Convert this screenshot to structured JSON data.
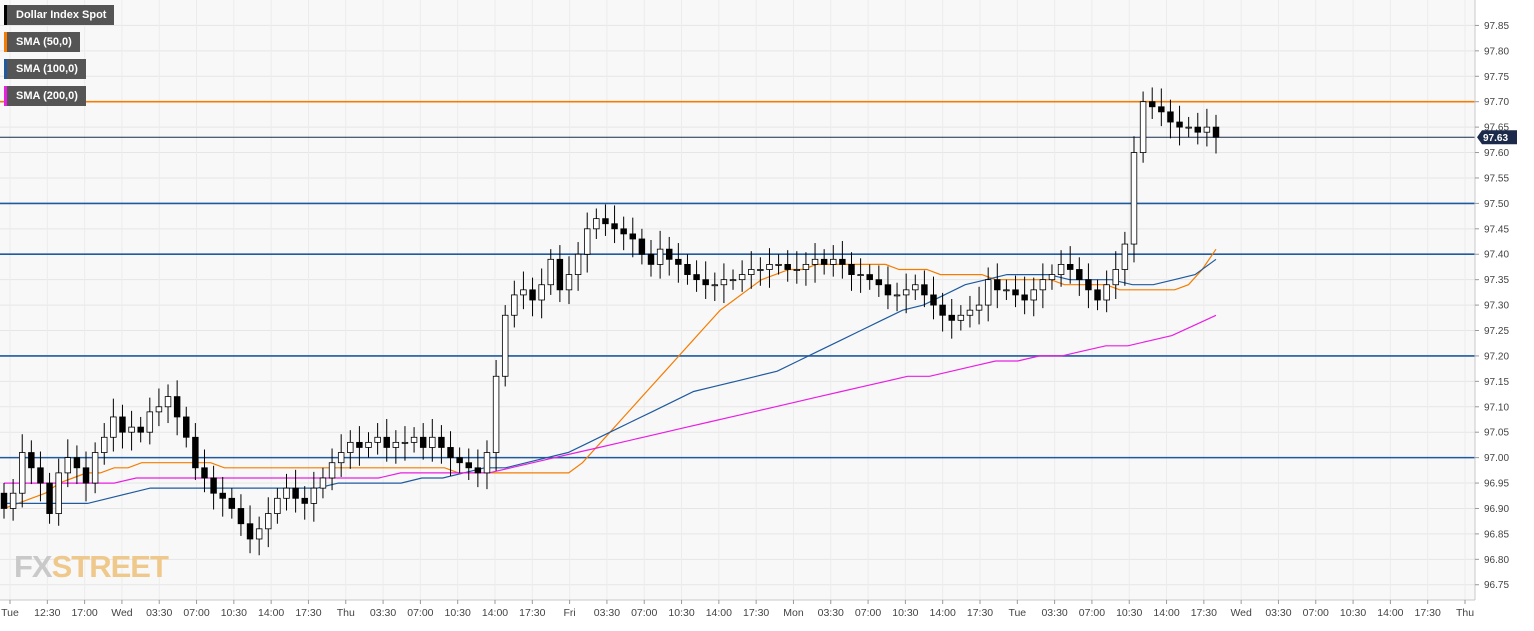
{
  "chart_data": {
    "type": "candlestick",
    "instrument": "Dollar Index Spot",
    "ylim": [
      96.72,
      97.9
    ],
    "y_ticks": [
      "97.85",
      "97.80",
      "97.75",
      "97.70",
      "97.65",
      "97.60",
      "97.55",
      "97.50",
      "97.45",
      "97.40",
      "97.35",
      "97.30",
      "97.25",
      "97.20",
      "97.15",
      "97.10",
      "97.05",
      "97.00",
      "96.95",
      "96.90",
      "96.85",
      "96.80",
      "96.75"
    ],
    "x_ticks": [
      "Tue",
      "12:30",
      "17:00",
      "Wed",
      "03:30",
      "07:00",
      "10:30",
      "14:00",
      "17:30",
      "Thu",
      "03:30",
      "07:00",
      "10:30",
      "14:00",
      "17:30",
      "Fri",
      "03:30",
      "07:00",
      "10:30",
      "14:00",
      "17:30",
      "Mon",
      "03:30",
      "07:00",
      "10:30",
      "14:00",
      "17:30",
      "Tue",
      "03:30",
      "07:00",
      "10:30",
      "14:00",
      "17:30",
      "Wed",
      "03:30",
      "07:00",
      "10:30",
      "14:00",
      "17:30",
      "Thu"
    ],
    "last_price": "97.63",
    "closes": [
      96.9,
      96.93,
      97.01,
      96.98,
      96.95,
      96.89,
      96.97,
      97.0,
      96.98,
      96.95,
      97.01,
      97.04,
      97.08,
      97.05,
      97.06,
      97.05,
      97.09,
      97.1,
      97.12,
      97.08,
      97.04,
      96.98,
      96.96,
      96.93,
      96.92,
      96.9,
      96.87,
      96.84,
      96.86,
      96.89,
      96.92,
      96.94,
      96.92,
      96.91,
      96.94,
      96.96,
      96.99,
      97.01,
      97.03,
      97.02,
      97.03,
      97.04,
      97.02,
      97.03,
      97.03,
      97.04,
      97.02,
      97.04,
      97.02,
      97.0,
      96.99,
      96.98,
      96.97,
      97.01,
      97.16,
      97.28,
      97.32,
      97.33,
      97.31,
      97.34,
      97.39,
      97.33,
      97.36,
      97.4,
      97.45,
      97.47,
      97.46,
      97.45,
      97.44,
      97.43,
      97.4,
      97.38,
      97.41,
      97.39,
      97.38,
      97.36,
      97.35,
      97.34,
      97.34,
      97.35,
      97.35,
      97.36,
      97.37,
      97.37,
      97.38,
      97.38,
      97.37,
      97.37,
      97.38,
      97.39,
      97.38,
      97.39,
      97.38,
      97.36,
      97.36,
      97.35,
      97.34,
      97.32,
      97.32,
      97.33,
      97.34,
      97.32,
      97.3,
      97.28,
      97.27,
      97.28,
      97.29,
      97.3,
      97.35,
      97.33,
      97.33,
      97.32,
      97.31,
      97.33,
      97.35,
      97.36,
      97.38,
      97.37,
      97.35,
      97.33,
      97.31,
      97.34,
      97.37,
      97.42,
      97.6,
      97.7,
      97.69,
      97.68,
      97.66,
      97.65,
      97.65,
      97.64,
      97.65,
      97.63
    ],
    "series": [
      {
        "name": "SMA (50,0)",
        "color": "#f57c00",
        "values": [
          96.9,
          96.91,
          96.92,
          96.93,
          96.95,
          96.96,
          96.97,
          96.97,
          96.98,
          96.98,
          96.99,
          96.99,
          96.99,
          96.99,
          96.99,
          96.99,
          96.98,
          96.98,
          96.98,
          96.98,
          96.98,
          96.98,
          96.98,
          96.98,
          96.98,
          96.98,
          96.98,
          96.98,
          96.98,
          96.98,
          96.98,
          96.98,
          96.98,
          96.97,
          96.97,
          96.97,
          96.97,
          96.97,
          96.97,
          96.97,
          96.97,
          96.97,
          96.99,
          97.02,
          97.05,
          97.08,
          97.11,
          97.14,
          97.17,
          97.2,
          97.23,
          97.26,
          97.29,
          97.31,
          97.33,
          97.35,
          97.36,
          97.37,
          97.37,
          97.38,
          97.38,
          97.38,
          97.38,
          97.38,
          97.38,
          97.37,
          97.37,
          97.37,
          97.36,
          97.36,
          97.36,
          97.36,
          97.35,
          97.35,
          97.35,
          97.35,
          97.35,
          97.34,
          97.34,
          97.34,
          97.34,
          97.33,
          97.33,
          97.33,
          97.33,
          97.33,
          97.34,
          97.37,
          97.41
        ]
      },
      {
        "name": "SMA (100,0)",
        "color": "#1f5a9e",
        "values": [
          96.91,
          96.91,
          96.91,
          96.91,
          96.91,
          96.92,
          96.93,
          96.94,
          96.94,
          96.94,
          96.94,
          96.94,
          96.94,
          96.94,
          96.94,
          96.94,
          96.95,
          96.95,
          96.95,
          96.95,
          96.96,
          96.96,
          96.97,
          96.98,
          96.98,
          96.99,
          97.0,
          97.01,
          97.03,
          97.05,
          97.07,
          97.09,
          97.11,
          97.13,
          97.14,
          97.15,
          97.16,
          97.17,
          97.19,
          97.21,
          97.23,
          97.25,
          97.27,
          97.29,
          97.3,
          97.32,
          97.34,
          97.35,
          97.36,
          97.36,
          97.36,
          97.35,
          97.35,
          97.35,
          97.34,
          97.34,
          97.35,
          97.36,
          97.39
        ]
      },
      {
        "name": "SMA (200,0)",
        "color": "#e91ee3",
        "values": [
          96.95,
          96.95,
          96.95,
          96.95,
          96.95,
          96.95,
          96.96,
          96.96,
          96.96,
          96.96,
          96.96,
          96.96,
          96.96,
          96.96,
          96.96,
          96.96,
          96.96,
          96.96,
          96.97,
          96.97,
          96.97,
          96.97,
          96.97,
          96.98,
          96.99,
          97.0,
          97.01,
          97.02,
          97.03,
          97.04,
          97.05,
          97.06,
          97.07,
          97.08,
          97.09,
          97.1,
          97.11,
          97.12,
          97.13,
          97.14,
          97.15,
          97.16,
          97.16,
          97.17,
          97.18,
          97.19,
          97.19,
          97.2,
          97.2,
          97.21,
          97.22,
          97.22,
          97.23,
          97.24,
          97.26,
          97.28
        ]
      }
    ],
    "horizontal_levels": [
      {
        "price": 97.7,
        "color": "#f57c00"
      },
      {
        "price": 97.5,
        "color": "#1f5a9e"
      },
      {
        "price": 97.4,
        "color": "#1f5a9e"
      },
      {
        "price": 97.2,
        "color": "#1f5a9e"
      },
      {
        "price": 97.0,
        "color": "#1f5a9e"
      },
      {
        "price": 97.63,
        "color": "#1b2a4a"
      }
    ],
    "grid": true
  },
  "legend": [
    {
      "label": "Dollar Index Spot",
      "color": "#000000"
    },
    {
      "label": "SMA (50,0)",
      "color": "#f57c00"
    },
    {
      "label": "SMA (100,0)",
      "color": "#1f5a9e"
    },
    {
      "label": "SMA (200,0)",
      "color": "#e91ee3"
    }
  ],
  "watermark": {
    "fx": "FX",
    "street": "STREET"
  },
  "colors": {
    "background": "#f8f8f8",
    "grid": "#e6e6e6",
    "price_tag_bg": "#1b2a4a",
    "legend_bg": "#555555"
  }
}
